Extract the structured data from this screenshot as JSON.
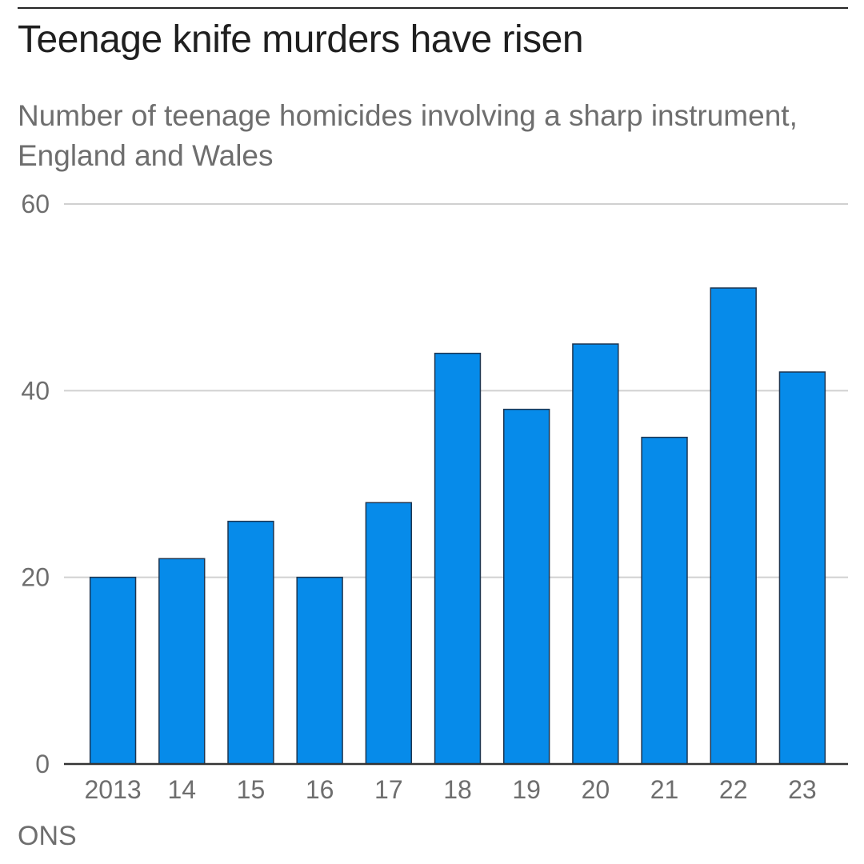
{
  "header": {
    "title": "Teenage knife murders have risen",
    "subtitle": "Number of teenage homicides involving a sharp instrument, England and Wales"
  },
  "footer": {
    "source": "ONS"
  },
  "colors": {
    "bar": "#068bea",
    "bar_stroke": "#1d3550",
    "grid": "#d0d0d0",
    "baseline": "#333333",
    "tick_text": "#6e6e6e"
  },
  "chart_data": {
    "type": "bar",
    "title": "Teenage knife murders have risen",
    "subtitle": "Number of teenage homicides involving a sharp instrument, England and Wales",
    "categories": [
      "2013",
      "14",
      "15",
      "16",
      "17",
      "18",
      "19",
      "20",
      "21",
      "22",
      "23"
    ],
    "values": [
      20,
      22,
      26,
      20,
      28,
      44,
      38,
      45,
      35,
      51,
      42
    ],
    "ylim": [
      0,
      60
    ],
    "yticks": [
      0,
      20,
      40,
      60
    ],
    "xlabel": "",
    "ylabel": "",
    "grid": true,
    "legend": "none"
  }
}
